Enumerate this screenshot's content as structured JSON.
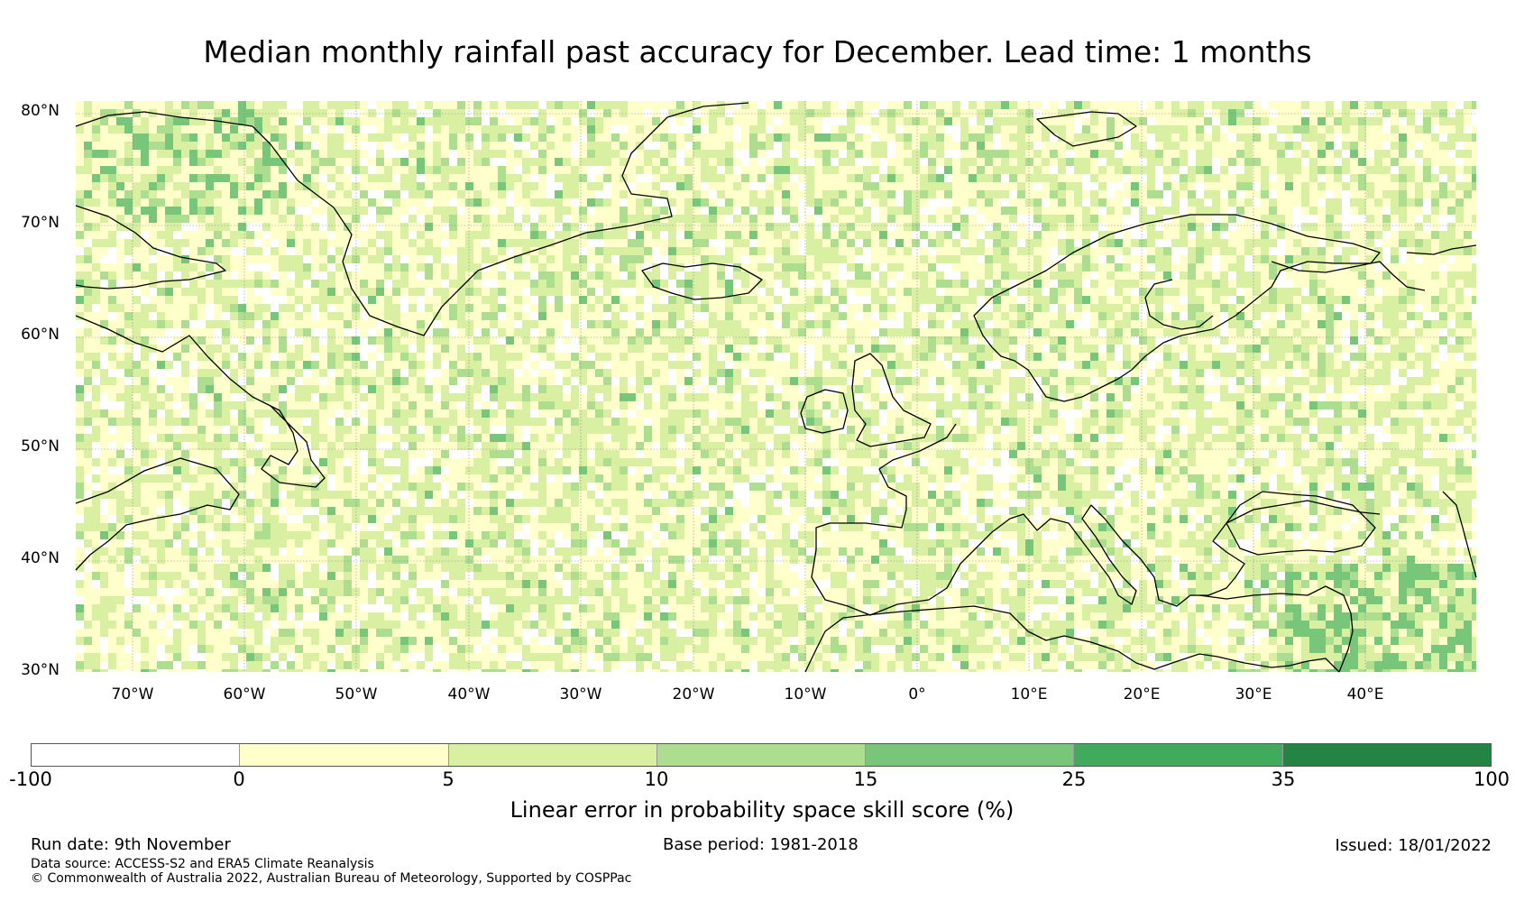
{
  "title": "Median monthly rainfall past accuracy for December. Lead time: 1 months",
  "map": {
    "lat_labels": [
      "80°N",
      "70°N",
      "60°N",
      "50°N",
      "40°N",
      "30°N"
    ],
    "lon_labels": [
      "70°W",
      "60°W",
      "50°W",
      "40°W",
      "30°W",
      "20°W",
      "10°W",
      "0°",
      "10°E",
      "20°E",
      "30°E",
      "40°E"
    ],
    "colors": {
      "ocean_bg": "#ffffcc",
      "coast": "#000000",
      "grid": "#888888"
    }
  },
  "colorbar": {
    "tick_labels": [
      "-100",
      "0",
      "5",
      "10",
      "15",
      "25",
      "35",
      "100"
    ],
    "colors": [
      "#ffffff",
      "#ffffcc",
      "#d9f0a3",
      "#addd8e",
      "#78c679",
      "#41ab5d",
      "#238443"
    ],
    "title": "Linear error in probability space skill score (%)"
  },
  "footer": {
    "run_date": "Run date: 9th November",
    "base_period": "Base period: 1981-2018",
    "issued": "Issued: 18/01/2022",
    "data_source": "Data source: ACCESS-S2 and ERA5 Climate Reanalysis",
    "copyright": "© Commonwealth of Australia 2022, Australian Bureau of Meteorology, Supported by COSPPac"
  }
}
